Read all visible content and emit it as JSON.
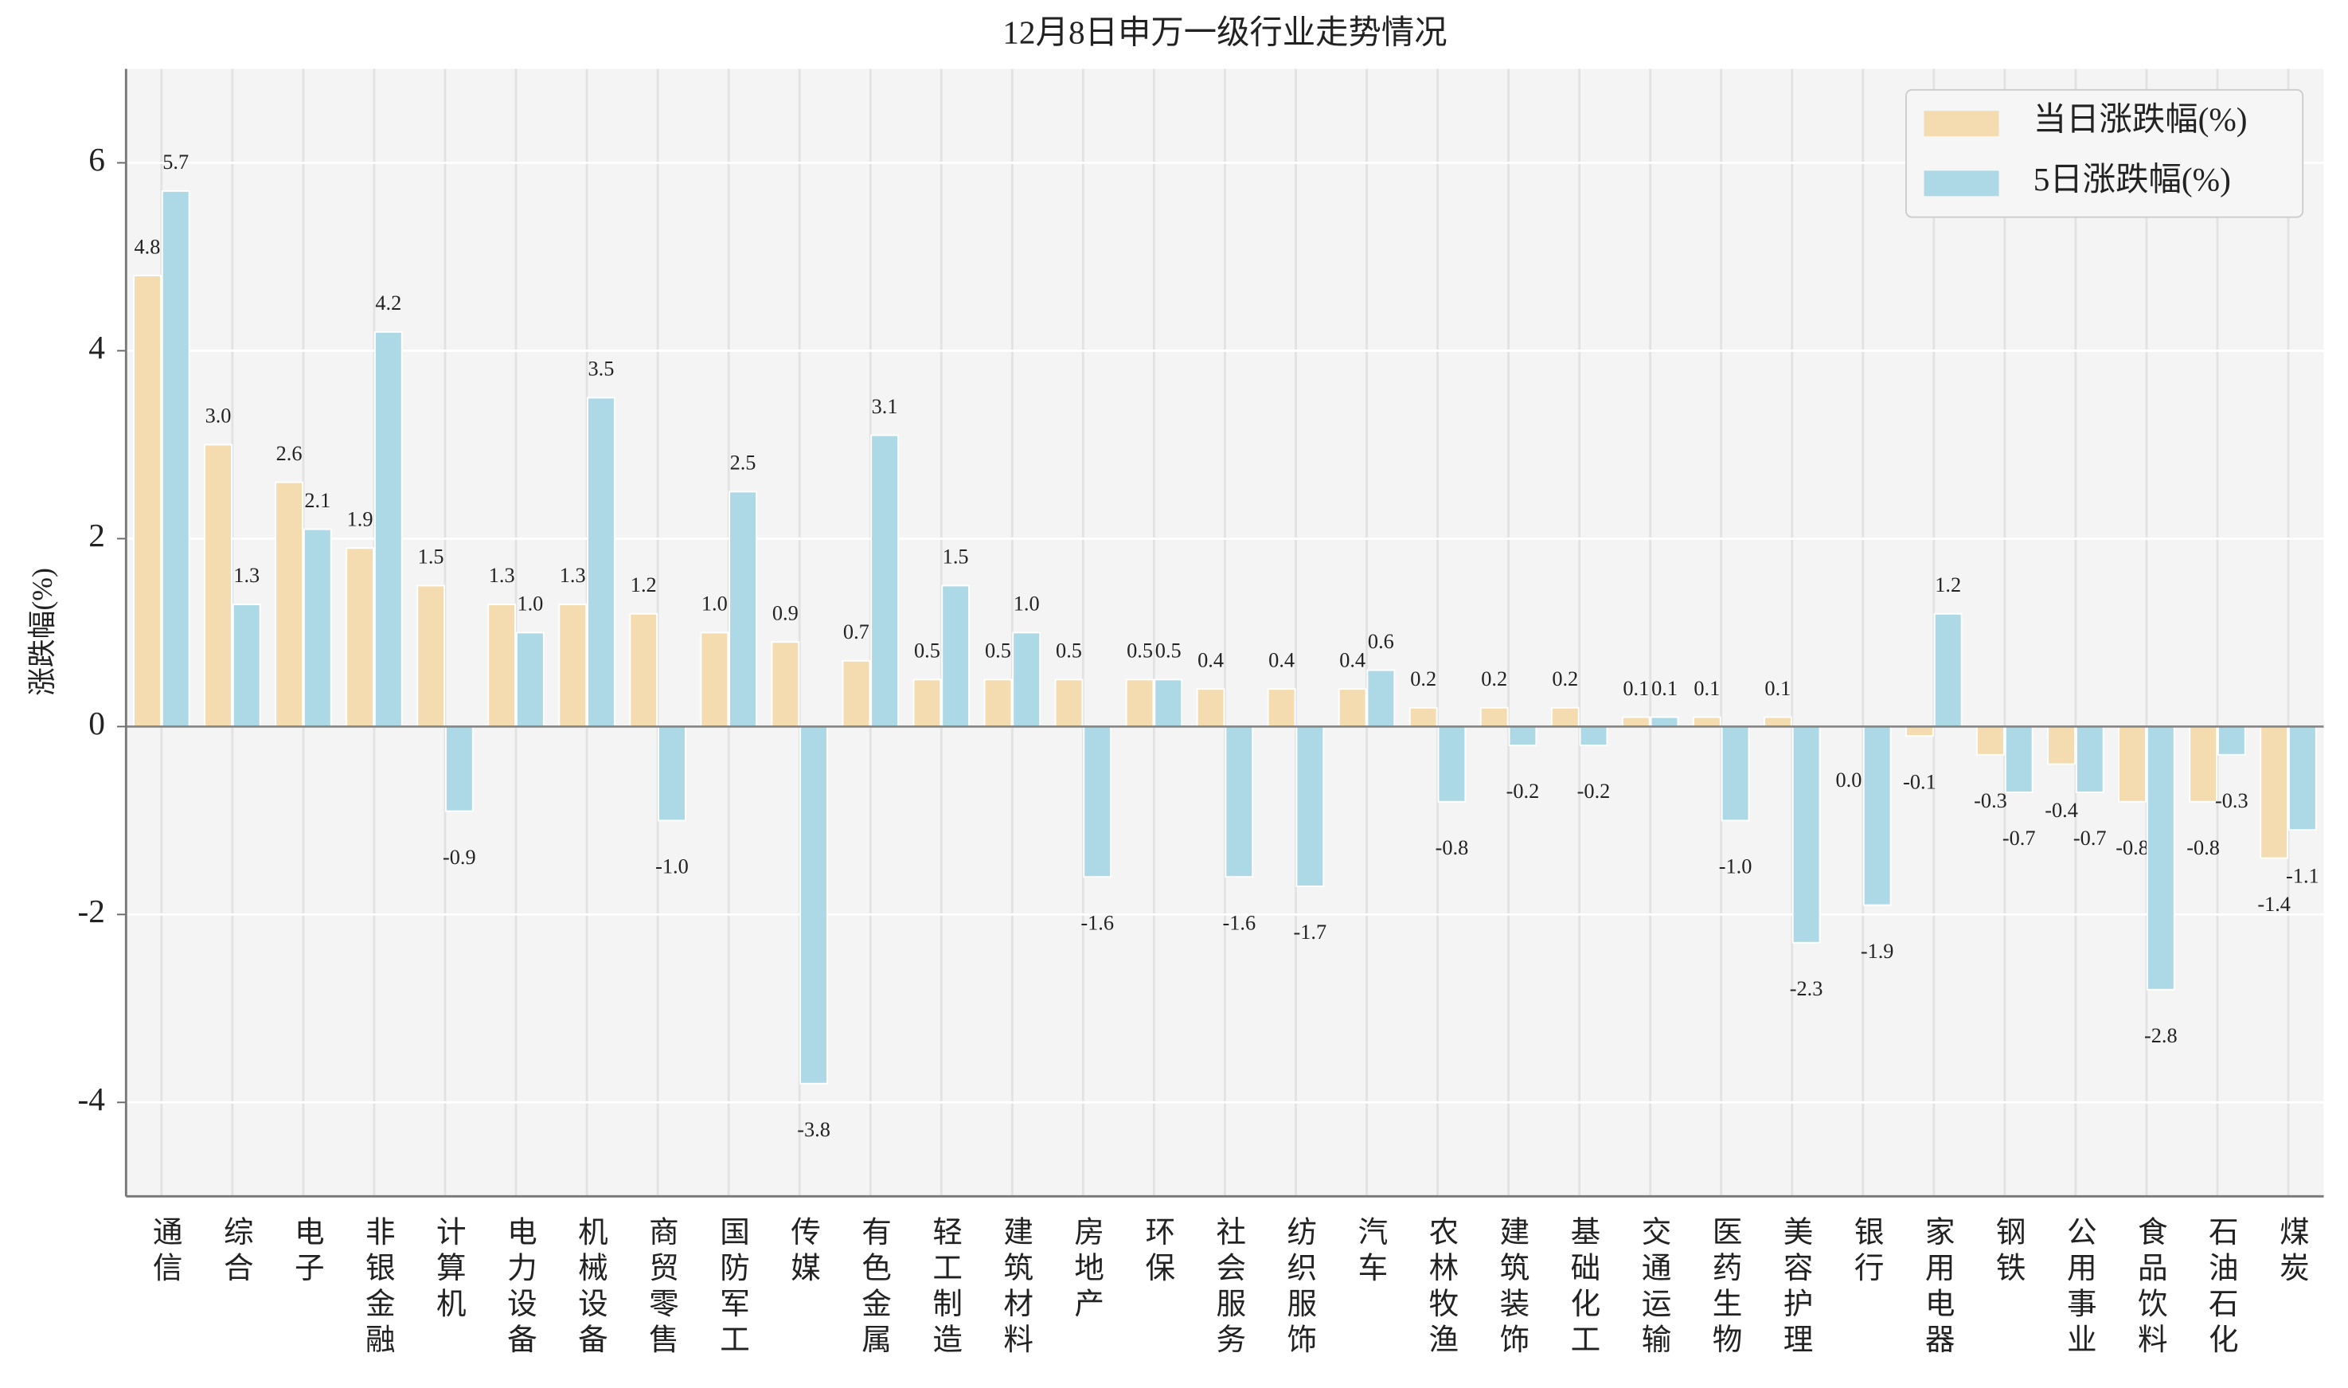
{
  "chart_data": {
    "type": "bar",
    "title": "12月8日申万一级行业走势情况",
    "y_label": "涨跌幅(%)",
    "categories": [
      "通信",
      "综合",
      "电子",
      "非银金融",
      "计算机",
      "电力设备",
      "机械设备",
      "商贸零售",
      "国防军工",
      "传媒",
      "有色金属",
      "轻工制造",
      "建筑材料",
      "房地产",
      "环保",
      "社会服务",
      "纺织服饰",
      "汽车",
      "农林牧渔",
      "建筑装饰",
      "基础化工",
      "交通运输",
      "医药生物",
      "美容护理",
      "银行",
      "家用电器",
      "钢铁",
      "公用事业",
      "食品饮料",
      "石油石化",
      "煤炭"
    ],
    "series": [
      {
        "name": "当日涨跌幅(%)",
        "color": "#f5dcb0",
        "values": [
          4.8,
          3.0,
          2.6,
          1.9,
          1.5,
          1.3,
          1.3,
          1.2,
          1.0,
          0.9,
          0.7,
          0.5,
          0.5,
          0.5,
          0.5,
          0.4,
          0.4,
          0.4,
          0.2,
          0.2,
          0.2,
          0.1,
          0.1,
          0.1,
          0.0,
          -0.1,
          -0.3,
          -0.4,
          -0.8,
          -0.8,
          -1.4
        ],
        "value_labels": [
          "4.8",
          "3.0",
          "2.6",
          "1.9",
          "1.5",
          "1.3",
          "1.3",
          "1.2",
          "1.0",
          "0.9",
          "0.7",
          "0.5",
          "0.5",
          "0.5",
          "0.5",
          "0.4",
          "0.4",
          "0.4",
          "0.2",
          "0.2",
          "0.2",
          "0.1",
          "0.1",
          "0.1",
          "0.0",
          "-0.1",
          "-0.3",
          "-0.4",
          "-0.8",
          "-0.8",
          "-1.4"
        ]
      },
      {
        "name": "5日涨跌幅(%)",
        "color": "#add8e6",
        "values": [
          5.7,
          1.3,
          2.1,
          4.2,
          -0.9,
          1.0,
          3.5,
          -1.0,
          2.5,
          -3.8,
          3.1,
          1.5,
          1.0,
          -1.6,
          0.5,
          -1.6,
          -1.7,
          0.6,
          -0.8,
          -0.2,
          -0.2,
          0.1,
          -1.0,
          -2.3,
          -1.9,
          1.2,
          -0.7,
          -0.7,
          -2.8,
          -0.3,
          -1.1
        ],
        "value_labels": [
          "5.7",
          "1.3",
          "2.1",
          "4.2",
          "-0.9",
          "1.0",
          "3.5",
          "-1.0",
          "2.5",
          "-3.8",
          "3.1",
          "1.5",
          "1.0",
          "-1.6",
          "0.5",
          "-1.6",
          "-1.7",
          "0.6",
          "-0.8",
          "-0.2",
          "-0.2",
          "0.1",
          "-1.0",
          "-2.3",
          "-1.9",
          "1.2",
          "-0.7",
          "-0.7",
          "-2.8",
          "-0.3",
          "-1.1"
        ]
      }
    ],
    "ylim": [
      -5,
      7
    ],
    "yticks": [
      -4,
      -2,
      0,
      2,
      4,
      6
    ],
    "grid": true,
    "legend": "upper right"
  }
}
